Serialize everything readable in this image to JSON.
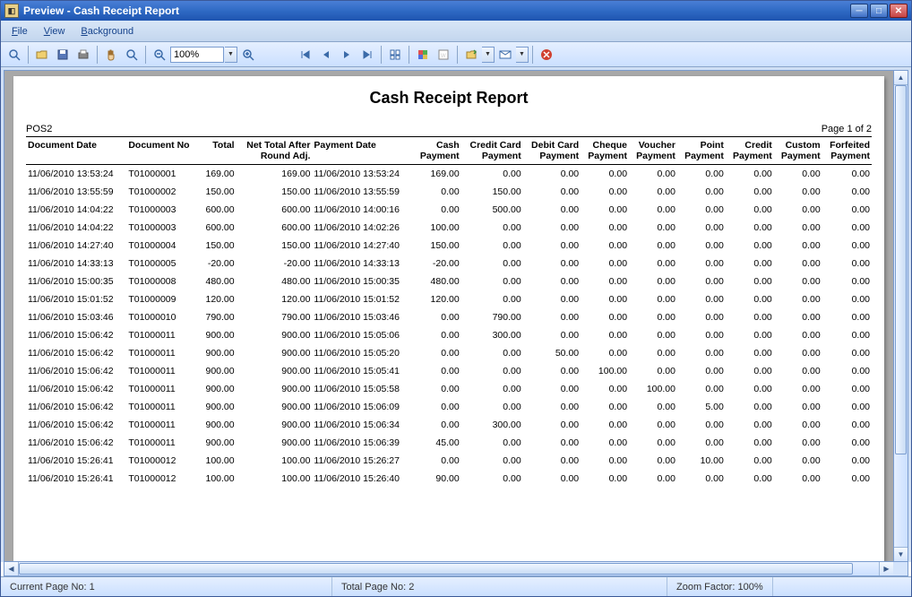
{
  "window": {
    "title": "Preview - Cash Receipt Report",
    "menu": [
      "File",
      "View",
      "Background"
    ],
    "zoom": "100%"
  },
  "report": {
    "title": "Cash Receipt Report",
    "pos": "POS2",
    "page_label": "Page 1 of 2",
    "columns": [
      "Document Date",
      "Document No",
      "Total",
      "Net Total After Round Adj.",
      "Payment Date",
      "Cash Payment",
      "Credit Card Payment",
      "Debit Card Payment",
      "Cheque Payment",
      "Voucher Payment",
      "Point Payment",
      "Credit Payment",
      "Custom Payment",
      "Forfeited Payment"
    ],
    "rows": [
      [
        "11/06/2010 13:53:24",
        "T01000001",
        "169.00",
        "169.00",
        "11/06/2010 13:53:24",
        "169.00",
        "0.00",
        "0.00",
        "0.00",
        "0.00",
        "0.00",
        "0.00",
        "0.00",
        "0.00"
      ],
      [
        "11/06/2010 13:55:59",
        "T01000002",
        "150.00",
        "150.00",
        "11/06/2010 13:55:59",
        "0.00",
        "150.00",
        "0.00",
        "0.00",
        "0.00",
        "0.00",
        "0.00",
        "0.00",
        "0.00"
      ],
      [
        "11/06/2010 14:04:22",
        "T01000003",
        "600.00",
        "600.00",
        "11/06/2010 14:00:16",
        "0.00",
        "500.00",
        "0.00",
        "0.00",
        "0.00",
        "0.00",
        "0.00",
        "0.00",
        "0.00"
      ],
      [
        "11/06/2010 14:04:22",
        "T01000003",
        "600.00",
        "600.00",
        "11/06/2010 14:02:26",
        "100.00",
        "0.00",
        "0.00",
        "0.00",
        "0.00",
        "0.00",
        "0.00",
        "0.00",
        "0.00"
      ],
      [
        "11/06/2010 14:27:40",
        "T01000004",
        "150.00",
        "150.00",
        "11/06/2010 14:27:40",
        "150.00",
        "0.00",
        "0.00",
        "0.00",
        "0.00",
        "0.00",
        "0.00",
        "0.00",
        "0.00"
      ],
      [
        "11/06/2010 14:33:13",
        "T01000005",
        "-20.00",
        "-20.00",
        "11/06/2010 14:33:13",
        "-20.00",
        "0.00",
        "0.00",
        "0.00",
        "0.00",
        "0.00",
        "0.00",
        "0.00",
        "0.00"
      ],
      [
        "11/06/2010 15:00:35",
        "T01000008",
        "480.00",
        "480.00",
        "11/06/2010 15:00:35",
        "480.00",
        "0.00",
        "0.00",
        "0.00",
        "0.00",
        "0.00",
        "0.00",
        "0.00",
        "0.00"
      ],
      [
        "11/06/2010 15:01:52",
        "T01000009",
        "120.00",
        "120.00",
        "11/06/2010 15:01:52",
        "120.00",
        "0.00",
        "0.00",
        "0.00",
        "0.00",
        "0.00",
        "0.00",
        "0.00",
        "0.00"
      ],
      [
        "11/06/2010 15:03:46",
        "T01000010",
        "790.00",
        "790.00",
        "11/06/2010 15:03:46",
        "0.00",
        "790.00",
        "0.00",
        "0.00",
        "0.00",
        "0.00",
        "0.00",
        "0.00",
        "0.00"
      ],
      [
        "11/06/2010 15:06:42",
        "T01000011",
        "900.00",
        "900.00",
        "11/06/2010 15:05:06",
        "0.00",
        "300.00",
        "0.00",
        "0.00",
        "0.00",
        "0.00",
        "0.00",
        "0.00",
        "0.00"
      ],
      [
        "11/06/2010 15:06:42",
        "T01000011",
        "900.00",
        "900.00",
        "11/06/2010 15:05:20",
        "0.00",
        "0.00",
        "50.00",
        "0.00",
        "0.00",
        "0.00",
        "0.00",
        "0.00",
        "0.00"
      ],
      [
        "11/06/2010 15:06:42",
        "T01000011",
        "900.00",
        "900.00",
        "11/06/2010 15:05:41",
        "0.00",
        "0.00",
        "0.00",
        "100.00",
        "0.00",
        "0.00",
        "0.00",
        "0.00",
        "0.00"
      ],
      [
        "11/06/2010 15:06:42",
        "T01000011",
        "900.00",
        "900.00",
        "11/06/2010 15:05:58",
        "0.00",
        "0.00",
        "0.00",
        "0.00",
        "100.00",
        "0.00",
        "0.00",
        "0.00",
        "0.00"
      ],
      [
        "11/06/2010 15:06:42",
        "T01000011",
        "900.00",
        "900.00",
        "11/06/2010 15:06:09",
        "0.00",
        "0.00",
        "0.00",
        "0.00",
        "0.00",
        "5.00",
        "0.00",
        "0.00",
        "0.00"
      ],
      [
        "11/06/2010 15:06:42",
        "T01000011",
        "900.00",
        "900.00",
        "11/06/2010 15:06:34",
        "0.00",
        "300.00",
        "0.00",
        "0.00",
        "0.00",
        "0.00",
        "0.00",
        "0.00",
        "0.00"
      ],
      [
        "11/06/2010 15:06:42",
        "T01000011",
        "900.00",
        "900.00",
        "11/06/2010 15:06:39",
        "45.00",
        "0.00",
        "0.00",
        "0.00",
        "0.00",
        "0.00",
        "0.00",
        "0.00",
        "0.00"
      ],
      [
        "11/06/2010 15:26:41",
        "T01000012",
        "100.00",
        "100.00",
        "11/06/2010 15:26:27",
        "0.00",
        "0.00",
        "0.00",
        "0.00",
        "0.00",
        "10.00",
        "0.00",
        "0.00",
        "0.00"
      ],
      [
        "11/06/2010 15:26:41",
        "T01000012",
        "100.00",
        "100.00",
        "11/06/2010 15:26:40",
        "90.00",
        "0.00",
        "0.00",
        "0.00",
        "0.00",
        "0.00",
        "0.00",
        "0.00",
        "0.00"
      ]
    ]
  },
  "status": {
    "current_page": "Current Page No: 1",
    "total_page": "Total Page No: 2",
    "zoom": "Zoom Factor: 100%"
  },
  "colors": {
    "titlebar_start": "#4a7fd6",
    "titlebar_end": "#1e54b0",
    "menu_text": "#15428b",
    "toolbar_bg": "#cbe0ff",
    "border": "#7a9ccf"
  }
}
